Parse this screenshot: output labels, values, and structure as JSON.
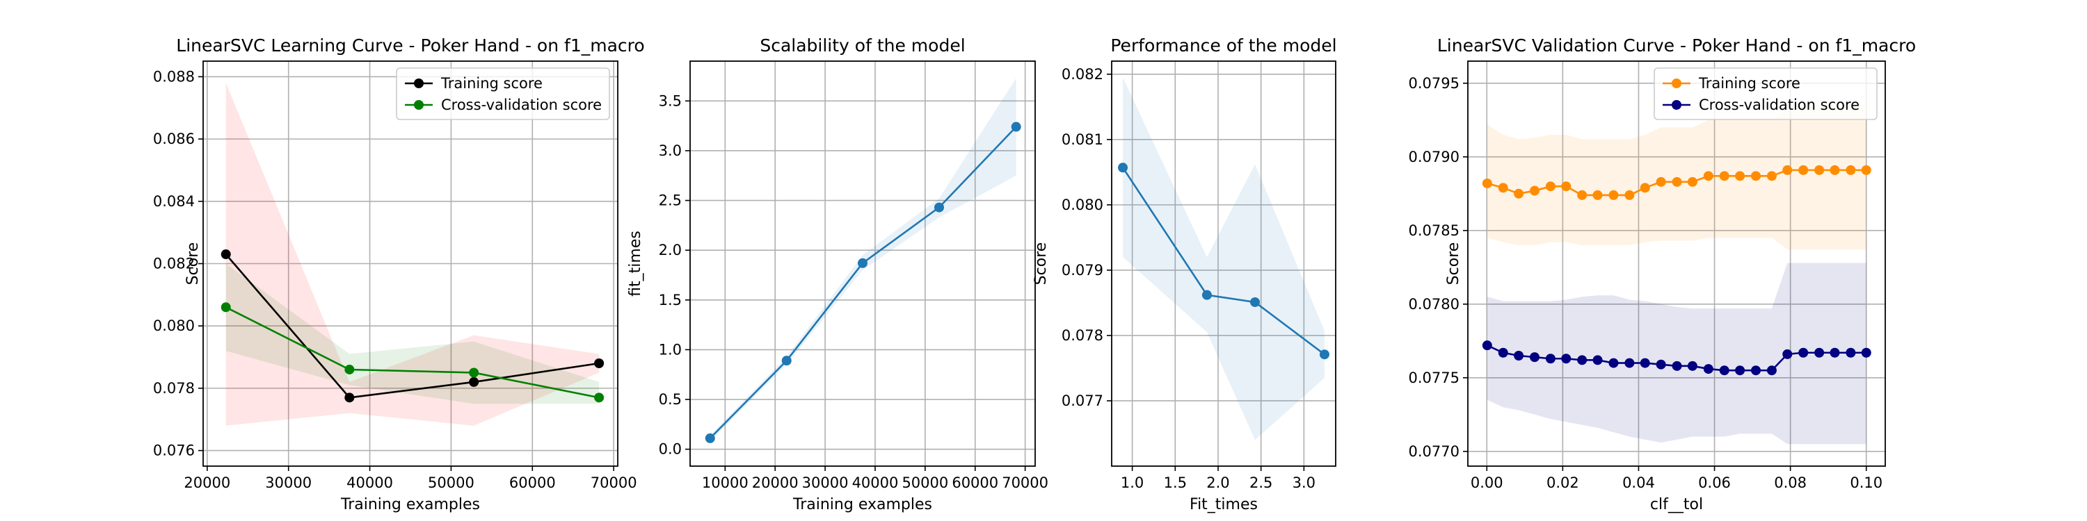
{
  "chart_data": [
    {
      "type": "line",
      "title": "LinearSVC Learning Curve - Poker Hand - on f1_macro",
      "xlabel": "Training examples",
      "ylabel": "Score",
      "xlim": [
        19500,
        70500
      ],
      "ylim": [
        0.0755,
        0.0885
      ],
      "xticks": [
        20000,
        30000,
        40000,
        50000,
        60000,
        70000
      ],
      "xtick_labels": [
        "20000",
        "30000",
        "40000",
        "50000",
        "60000",
        "70000"
      ],
      "yticks": [
        0.076,
        0.078,
        0.08,
        0.082,
        0.084,
        0.086,
        0.088
      ],
      "ytick_labels": [
        "0.076",
        "0.078",
        "0.080",
        "0.082",
        "0.084",
        "0.086",
        "0.088"
      ],
      "grid": true,
      "legend": "top-right",
      "x": [
        22300,
        37500,
        52800,
        68200
      ],
      "series": [
        {
          "name": "Training score",
          "values": [
            0.0823,
            0.0777,
            0.0782,
            0.0788
          ],
          "lower": [
            0.0768,
            0.0772,
            0.0768,
            0.0785
          ],
          "upper": [
            0.0878,
            0.0782,
            0.0797,
            0.0791
          ],
          "color": "#000000",
          "band_color": "#ff0000"
        },
        {
          "name": "Cross-validation score",
          "values": [
            0.0806,
            0.0786,
            0.0785,
            0.0777
          ],
          "lower": [
            0.0792,
            0.0781,
            0.0775,
            0.0775
          ],
          "upper": [
            0.082,
            0.0791,
            0.0795,
            0.0782
          ],
          "color": "#008000",
          "band_color": "#008000"
        }
      ]
    },
    {
      "type": "line",
      "title": "Scalability of the model",
      "xlabel": "Training examples",
      "ylabel": "fit_times",
      "xlim": [
        3000,
        72000
      ],
      "ylim": [
        -0.17,
        3.9
      ],
      "xticks": [
        10000,
        20000,
        30000,
        40000,
        50000,
        60000,
        70000
      ],
      "xtick_labels": [
        "10000",
        "20000",
        "30000",
        "40000",
        "50000",
        "60000",
        "70000"
      ],
      "yticks": [
        0.0,
        0.5,
        1.0,
        1.5,
        2.0,
        2.5,
        3.0,
        3.5
      ],
      "ytick_labels": [
        "0.0",
        "0.5",
        "1.0",
        "1.5",
        "2.0",
        "2.5",
        "3.0",
        "3.5"
      ],
      "grid": true,
      "x": [
        7000,
        22300,
        37500,
        52800,
        68200
      ],
      "series": [
        {
          "values": [
            0.11,
            0.89,
            1.87,
            2.43,
            3.24
          ],
          "lower": [
            0.08,
            0.85,
            1.8,
            2.33,
            2.75
          ],
          "upper": [
            0.14,
            0.93,
            1.95,
            2.52,
            3.73
          ],
          "color": "#1f77b4",
          "band_color": "#1f77b4"
        }
      ]
    },
    {
      "type": "line",
      "title": "Performance of the model",
      "xlabel": "Fit_times",
      "ylabel": "Score",
      "xlim": [
        0.76,
        3.37
      ],
      "ylim": [
        0.076,
        0.0822
      ],
      "xticks": [
        1.0,
        1.5,
        2.0,
        2.5,
        3.0
      ],
      "xtick_labels": [
        "1.0",
        "1.5",
        "2.0",
        "2.5",
        "3.0"
      ],
      "yticks": [
        0.077,
        0.078,
        0.079,
        0.08,
        0.081,
        0.082
      ],
      "ytick_labels": [
        "0.077",
        "0.078",
        "0.079",
        "0.080",
        "0.081",
        "0.082"
      ],
      "grid": true,
      "x": [
        0.89,
        1.87,
        2.43,
        3.24
      ],
      "series": [
        {
          "values": [
            0.08057,
            0.07862,
            0.07851,
            0.07771
          ],
          "lower": [
            0.0792,
            0.07805,
            0.0764,
            0.07735
          ],
          "upper": [
            0.08195,
            0.0792,
            0.08062,
            0.07807
          ],
          "color": "#1f77b4",
          "band_color": "#1f77b4"
        }
      ]
    },
    {
      "type": "line",
      "title": "LinearSVC Validation Curve - Poker Hand - on f1_macro",
      "xlabel": "clf__tol",
      "ylabel": "Score",
      "xlim": [
        -0.005,
        0.105
      ],
      "ylim": [
        0.0769,
        0.07965
      ],
      "xticks": [
        0.0,
        0.02,
        0.04,
        0.06,
        0.08,
        0.1
      ],
      "xtick_labels": [
        "0.00",
        "0.02",
        "0.04",
        "0.06",
        "0.08",
        "0.10"
      ],
      "yticks": [
        0.077,
        0.0775,
        0.078,
        0.0785,
        0.079,
        0.0795
      ],
      "ytick_labels": [
        "0.0770",
        "0.0775",
        "0.0780",
        "0.0785",
        "0.0790",
        "0.0795"
      ],
      "grid": true,
      "legend": "top-right",
      "x": [
        0.0001,
        0.0043,
        0.0084,
        0.0126,
        0.0168,
        0.0209,
        0.0251,
        0.0292,
        0.0334,
        0.0376,
        0.0417,
        0.0459,
        0.0501,
        0.0542,
        0.0584,
        0.0626,
        0.0667,
        0.0709,
        0.0751,
        0.0792,
        0.0834,
        0.0876,
        0.0917,
        0.0959,
        0.1
      ],
      "series": [
        {
          "name": "Training score",
          "values": [
            0.07882,
            0.07879,
            0.07875,
            0.07877,
            0.0788,
            0.0788,
            0.07874,
            0.07874,
            0.07874,
            0.07874,
            0.07879,
            0.07883,
            0.07883,
            0.07883,
            0.07887,
            0.07887,
            0.07887,
            0.07887,
            0.07887,
            0.07891,
            0.07891,
            0.07891,
            0.07891,
            0.07891,
            0.07891
          ],
          "lower": [
            0.07845,
            0.07842,
            0.0784,
            0.0784,
            0.07842,
            0.07842,
            0.0784,
            0.0784,
            0.0784,
            0.0784,
            0.07842,
            0.07843,
            0.07843,
            0.07843,
            0.07845,
            0.07845,
            0.07845,
            0.07845,
            0.07845,
            0.07837,
            0.07837,
            0.07837,
            0.07837,
            0.07837,
            0.07837
          ],
          "upper": [
            0.07922,
            0.07915,
            0.07912,
            0.07913,
            0.07915,
            0.07915,
            0.07912,
            0.07912,
            0.07912,
            0.07912,
            0.07915,
            0.0792,
            0.0792,
            0.0792,
            0.07925,
            0.07925,
            0.07925,
            0.07925,
            0.07925,
            0.07935,
            0.07935,
            0.07935,
            0.07935,
            0.07935,
            0.07935
          ],
          "color": "#ff8c00",
          "band_color": "#ff8c00"
        },
        {
          "name": "Cross-validation score",
          "values": [
            0.07772,
            0.07767,
            0.07765,
            0.07764,
            0.07763,
            0.07763,
            0.07762,
            0.07762,
            0.0776,
            0.0776,
            0.0776,
            0.07759,
            0.07758,
            0.07758,
            0.07756,
            0.07755,
            0.07755,
            0.07755,
            0.07755,
            0.07766,
            0.07767,
            0.07767,
            0.07767,
            0.07767,
            0.07767
          ],
          "lower": [
            0.07735,
            0.0773,
            0.07728,
            0.07725,
            0.07722,
            0.0772,
            0.07718,
            0.07716,
            0.07713,
            0.0771,
            0.07708,
            0.07706,
            0.07708,
            0.0771,
            0.0771,
            0.0771,
            0.07712,
            0.07712,
            0.07712,
            0.07705,
            0.07705,
            0.07705,
            0.07705,
            0.07705,
            0.07705
          ],
          "upper": [
            0.07805,
            0.07802,
            0.07802,
            0.07802,
            0.07802,
            0.07803,
            0.07805,
            0.07806,
            0.07806,
            0.07803,
            0.07802,
            0.078,
            0.07798,
            0.07797,
            0.07797,
            0.07797,
            0.07797,
            0.07797,
            0.07797,
            0.07828,
            0.07828,
            0.07828,
            0.07828,
            0.07828,
            0.07828
          ],
          "color": "#000080",
          "band_color": "#000080"
        }
      ]
    }
  ]
}
